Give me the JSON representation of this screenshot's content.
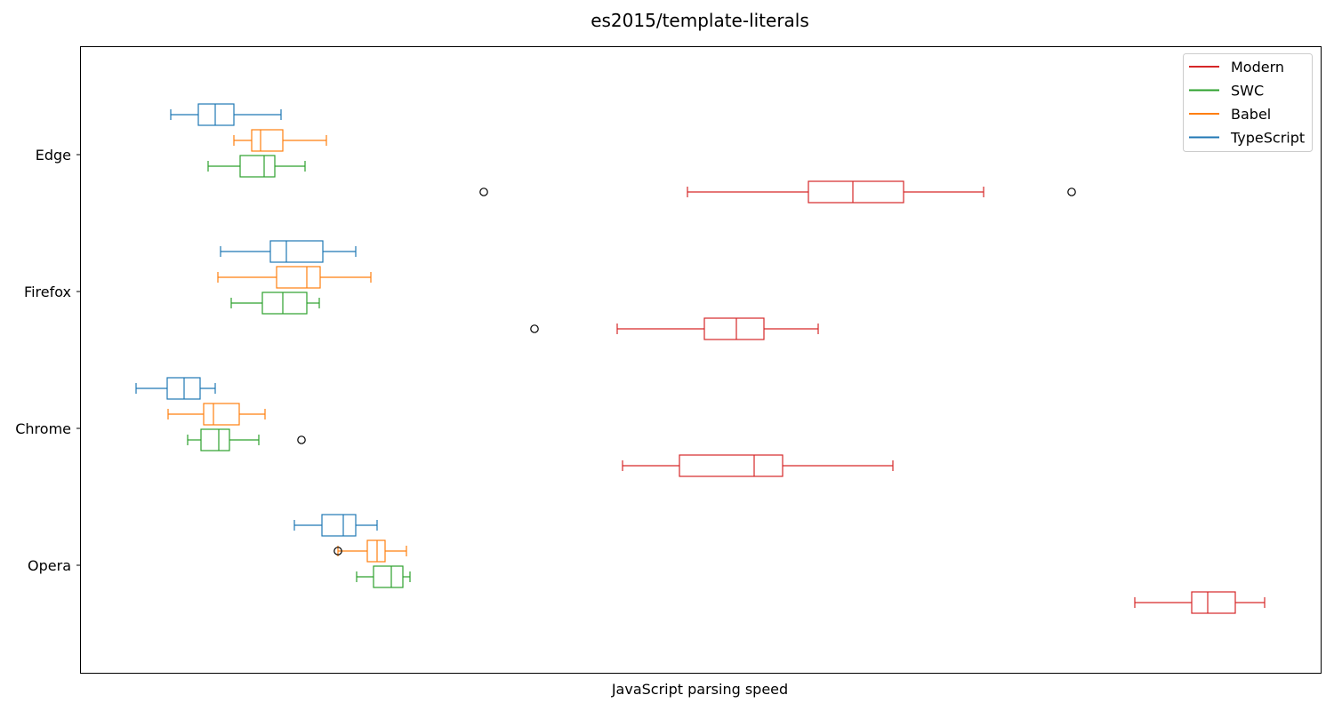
{
  "chart_data": {
    "type": "boxplot",
    "orientation": "horizontal",
    "title": "es2015/template-literals",
    "xlabel": "JavaScript parsing speed",
    "ylabel": "",
    "x_ticks_visible": false,
    "grid": false,
    "legend_position": "top-right",
    "categories": [
      "Edge",
      "Firefox",
      "Chrome",
      "Opera"
    ],
    "series": [
      {
        "name": "TypeScript",
        "color": "#1f77b4",
        "boxes": [
          {
            "category": "Edge",
            "whisker_low": 192,
            "q1": 223,
            "median": 242,
            "q3": 263,
            "whisker_high": 316,
            "outliers": []
          },
          {
            "category": "Firefox",
            "whisker_low": 248,
            "q1": 304,
            "median": 322,
            "q3": 363,
            "whisker_high": 400,
            "outliers": []
          },
          {
            "category": "Chrome",
            "whisker_low": 153,
            "q1": 188,
            "median": 207,
            "q3": 225,
            "whisker_high": 242,
            "outliers": []
          },
          {
            "category": "Opera",
            "whisker_low": 331,
            "q1": 362,
            "median": 386,
            "q3": 400,
            "whisker_high": 424,
            "outliers": []
          }
        ]
      },
      {
        "name": "Babel",
        "color": "#ff7f0e",
        "boxes": [
          {
            "category": "Edge",
            "whisker_low": 263,
            "q1": 283,
            "median": 293,
            "q3": 318,
            "whisker_high": 367,
            "outliers": []
          },
          {
            "category": "Firefox",
            "whisker_low": 245,
            "q1": 311,
            "median": 345,
            "q3": 360,
            "whisker_high": 417,
            "outliers": []
          },
          {
            "category": "Chrome",
            "whisker_low": 189,
            "q1": 229,
            "median": 240,
            "q3": 269,
            "whisker_high": 298,
            "outliers": []
          },
          {
            "category": "Opera",
            "whisker_low": 380,
            "q1": 413,
            "median": 424,
            "q3": 433,
            "whisker_high": 457,
            "outliers": [
              380
            ]
          }
        ]
      },
      {
        "name": "SWC",
        "color": "#2ca02c",
        "boxes": [
          {
            "category": "Edge",
            "whisker_low": 234,
            "q1": 270,
            "median": 297,
            "q3": 309,
            "whisker_high": 343,
            "outliers": []
          },
          {
            "category": "Firefox",
            "whisker_low": 260,
            "q1": 295,
            "median": 318,
            "q3": 345,
            "whisker_high": 359,
            "outliers": []
          },
          {
            "category": "Chrome",
            "whisker_low": 211,
            "q1": 226,
            "median": 246,
            "q3": 258,
            "whisker_high": 291,
            "outliers": [
              339
            ]
          },
          {
            "category": "Opera",
            "whisker_low": 401,
            "q1": 420,
            "median": 440,
            "q3": 453,
            "whisker_high": 461,
            "outliers": []
          }
        ]
      },
      {
        "name": "Modern",
        "color": "#d62728",
        "boxes": [
          {
            "category": "Edge",
            "whisker_low": 773,
            "q1": 909,
            "median": 959,
            "q3": 1016,
            "whisker_high": 1106,
            "outliers": [
              544,
              1205
            ]
          },
          {
            "category": "Firefox",
            "whisker_low": 694,
            "q1": 792,
            "median": 828,
            "q3": 859,
            "whisker_high": 920,
            "outliers": [
              601
            ]
          },
          {
            "category": "Chrome",
            "whisker_low": 700,
            "q1": 764,
            "median": 848,
            "q3": 880,
            "whisker_high": 1004,
            "outliers": []
          },
          {
            "category": "Opera",
            "whisker_low": 1276,
            "q1": 1340,
            "median": 1358,
            "q3": 1389,
            "whisker_high": 1422,
            "outliers": []
          }
        ]
      }
    ],
    "legend": [
      "Modern",
      "SWC",
      "Babel",
      "TypeScript"
    ]
  }
}
